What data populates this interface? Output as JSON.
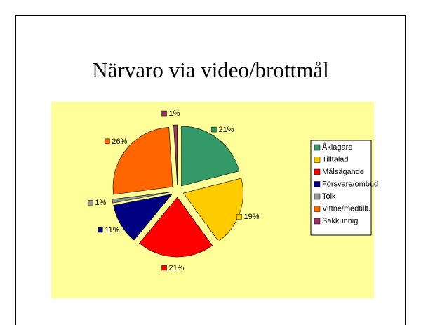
{
  "chart_data": {
    "type": "pie",
    "title": "Närvaro via video/brottmål",
    "categories": [
      "Åklagare",
      "Tilltalad",
      "Målsägande",
      "Försvare/ombud",
      "Tolk",
      "Vittne/medtillt.",
      "Sakkunnig"
    ],
    "values": [
      21,
      19,
      21,
      11,
      1,
      26,
      1
    ],
    "value_labels": [
      "21%",
      "19%",
      "21%",
      "11%",
      "1%",
      "26%",
      "1%"
    ],
    "colors": [
      "#339966",
      "#ffcc00",
      "#ff0000",
      "#000080",
      "#969696",
      "#ff6600",
      "#993366"
    ],
    "legend": "right"
  }
}
